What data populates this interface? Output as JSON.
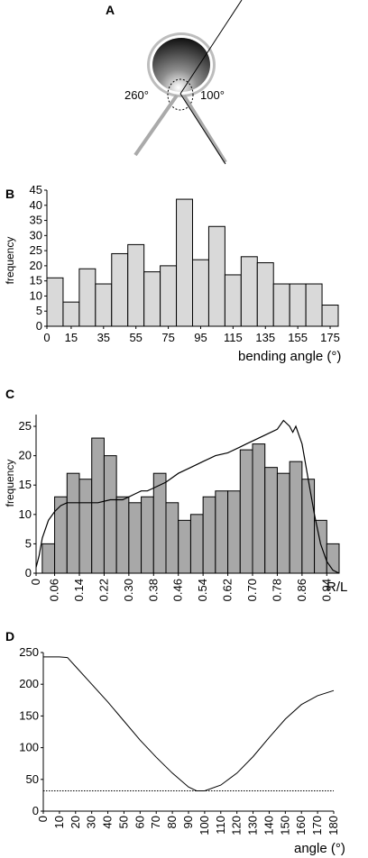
{
  "panels": {
    "a": {
      "letter": "A",
      "label_left": "260°",
      "label_right": "100°"
    },
    "b": {
      "letter": "B"
    },
    "c": {
      "letter": "C"
    },
    "d": {
      "letter": "D"
    }
  },
  "chart_data": [
    {
      "id": "b",
      "type": "bar",
      "title": "",
      "xlabel": "bending angle (°)",
      "ylabel": "frequency",
      "ylim": [
        0,
        45
      ],
      "yticks": [
        0,
        5,
        10,
        15,
        20,
        25,
        30,
        35,
        40,
        45
      ],
      "xticks": [
        "0",
        "15",
        "35",
        "55",
        "75",
        "95",
        "115",
        "135",
        "155",
        "175"
      ],
      "bin_start": 0,
      "bin_width": 10,
      "values": [
        16,
        8,
        19,
        14,
        24,
        27,
        18,
        20,
        42,
        22,
        33,
        17,
        23,
        21,
        14,
        14,
        14,
        7
      ],
      "bar_color": "#d9d9d9"
    },
    {
      "id": "c",
      "type": "bar",
      "title": "",
      "xlabel": "R/L",
      "ylabel": "frequency",
      "ylim": [
        0,
        27
      ],
      "yticks": [
        0,
        5,
        10,
        15,
        20,
        25
      ],
      "xticks": [
        "0",
        "0.06",
        "0.14",
        "0.22",
        "0.30",
        "0.38",
        "0.46",
        "0.54",
        "0.62",
        "0.70",
        "0.78",
        "0.86",
        "0.94"
      ],
      "bin_start": 0.02,
      "bin_width": 0.04,
      "values": [
        5,
        13,
        17,
        16,
        23,
        20,
        13,
        12,
        13,
        17,
        12,
        9,
        10,
        13,
        14,
        14,
        21,
        22,
        18,
        17,
        19,
        16,
        9,
        5
      ],
      "bar_color": "#a8a8a8",
      "curve": {
        "x": [
          0,
          0.01,
          0.02,
          0.04,
          0.06,
          0.08,
          0.1,
          0.12,
          0.16,
          0.2,
          0.24,
          0.28,
          0.3,
          0.32,
          0.34,
          0.36,
          0.38,
          0.42,
          0.46,
          0.5,
          0.54,
          0.58,
          0.62,
          0.66,
          0.68,
          0.7,
          0.74,
          0.78,
          0.8,
          0.82,
          0.83,
          0.84,
          0.86,
          0.88,
          0.9,
          0.92,
          0.94,
          0.96,
          0.98
        ],
        "y": [
          1,
          3,
          6,
          9,
          10.5,
          11.5,
          12,
          12,
          12,
          12,
          12.5,
          12.5,
          13,
          13.5,
          14,
          14,
          14.5,
          15.5,
          17,
          18,
          19,
          20,
          20.5,
          21.5,
          22,
          22.5,
          23.5,
          24.5,
          26,
          25,
          24,
          25,
          22,
          16,
          10,
          5,
          2,
          0.5,
          0
        ]
      }
    },
    {
      "id": "d",
      "type": "line",
      "title": "",
      "xlabel": "angle (°)",
      "ylabel": "",
      "xlim": [
        0,
        180
      ],
      "ylim": [
        0,
        250
      ],
      "xticks": [
        "0",
        "10",
        "20",
        "30",
        "40",
        "50",
        "60",
        "70",
        "80",
        "90",
        "100",
        "110",
        "120",
        "130",
        "140",
        "150",
        "160",
        "170",
        "180"
      ],
      "yticks": [
        0,
        50,
        100,
        150,
        200,
        250
      ],
      "series": [
        {
          "style": "solid",
          "x": [
            0,
            10,
            15,
            20,
            30,
            40,
            50,
            60,
            70,
            80,
            90,
            95,
            100,
            110,
            120,
            130,
            140,
            150,
            160,
            170,
            180
          ],
          "y": [
            243,
            243,
            242,
            228,
            200,
            172,
            142,
            112,
            85,
            60,
            38,
            32,
            32,
            41,
            60,
            86,
            116,
            145,
            168,
            182,
            190
          ]
        },
        {
          "style": "dotted",
          "x": [
            0,
            180
          ],
          "y": [
            32,
            32
          ]
        }
      ]
    }
  ]
}
